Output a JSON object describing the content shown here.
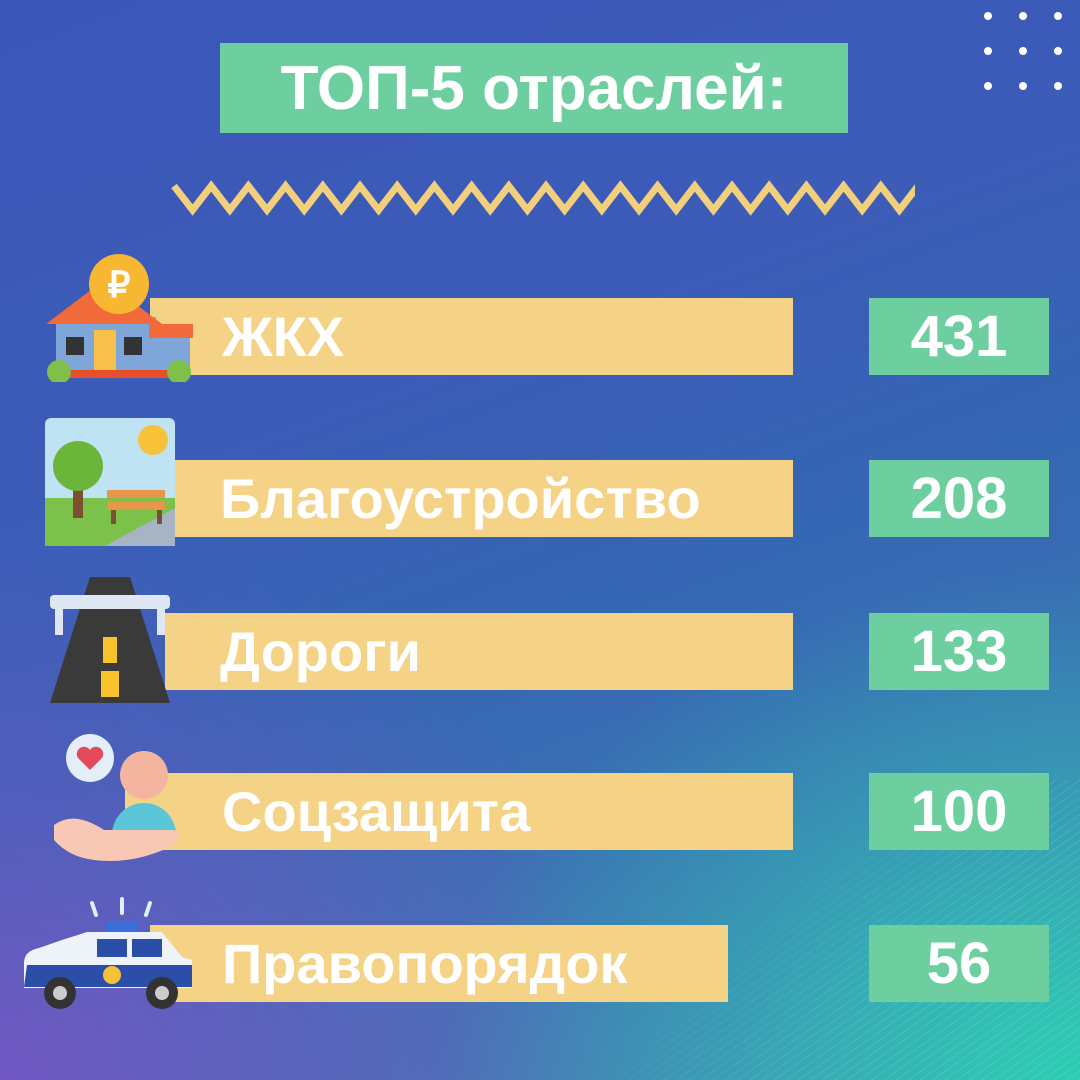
{
  "title": "ТОП-5 отраслей:",
  "colors": {
    "title_bg": "#6dcfa0",
    "bar": "#f4d286",
    "value_bg": "#6dcfa0",
    "zigzag": "#f2cf7d"
  },
  "items": [
    {
      "label": "ЖКХ",
      "value": "431",
      "icon": "house-ruble-icon"
    },
    {
      "label": "Благоустройство",
      "value": "208",
      "icon": "park-bench-icon"
    },
    {
      "label": "Дороги",
      "value": "133",
      "icon": "road-icon"
    },
    {
      "label": "Соцзащита",
      "value": "100",
      "icon": "social-care-icon"
    },
    {
      "label": "Правопорядок",
      "value": "56",
      "icon": "police-car-icon"
    }
  ]
}
